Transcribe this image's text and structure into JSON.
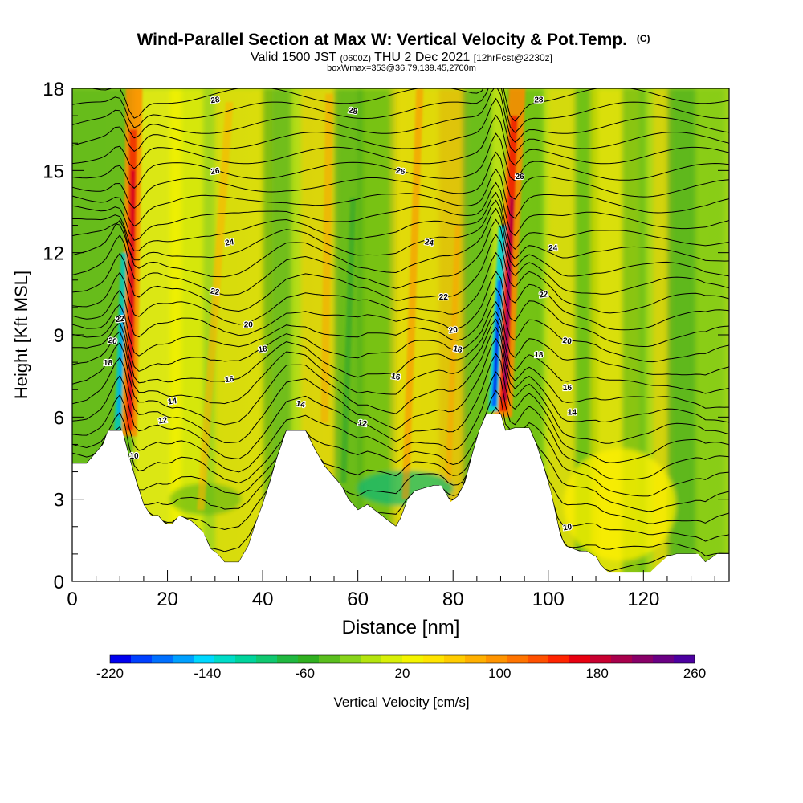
{
  "chart_data": {
    "type": "heatmap",
    "title": "Wind-Parallel Section at Max W: Vertical Velocity & Pot.Temp.",
    "title_suffix": "(C)",
    "subtitle_parts": {
      "a": "Valid 1500 JST",
      "b": "(0600Z)",
      "c": "THU 2 Dec 2021",
      "d": "[12hrFcst@2230z]"
    },
    "info_line": "boxWmax=353@36.79,139.45,2700m",
    "xlabel": "Distance [nm]",
    "ylabel": "Height [Kft MSL]",
    "xlim": [
      0,
      138
    ],
    "ylim": [
      0,
      18
    ],
    "xticks": [
      0,
      20,
      40,
      60,
      80,
      100,
      120
    ],
    "yticks": [
      0,
      3,
      6,
      9,
      12,
      15,
      18
    ],
    "xticks_labels": [
      "0",
      "20",
      "40",
      "60",
      "80",
      "100",
      "120"
    ],
    "yticks_labels": [
      "0",
      "3",
      "6",
      "9",
      "12",
      "15",
      "18"
    ],
    "grid": false,
    "colorbar": {
      "label": "Vertical Velocity [cm/s]",
      "min": -220,
      "max": 260,
      "step": 20,
      "tick_labels": [
        "-220",
        "-140",
        "-60",
        "20",
        "100",
        "180",
        "260"
      ],
      "colors": [
        "#0000ee",
        "#0040ff",
        "#0070ff",
        "#00a0ff",
        "#00d8ff",
        "#00dcc8",
        "#00d49c",
        "#10c870",
        "#20b840",
        "#30b020",
        "#5abe1e",
        "#88d41a",
        "#b4e40e",
        "#d8f008",
        "#f4f400",
        "#ffe400",
        "#ffcc00",
        "#ffb000",
        "#ff9400",
        "#ff7400",
        "#ff5000",
        "#ff2400",
        "#e80010",
        "#c80030",
        "#a8004c",
        "#880068",
        "#6a0084",
        "#4c00a0"
      ]
    },
    "contour_field": "Potential Temperature (C)",
    "contour_labels": [
      {
        "x": 30,
        "y": 17.6,
        "text": "28"
      },
      {
        "x": 59,
        "y": 17.2,
        "text": "28"
      },
      {
        "x": 98,
        "y": 17.6,
        "text": "28"
      },
      {
        "x": 30,
        "y": 15.0,
        "text": "26"
      },
      {
        "x": 69,
        "y": 15.0,
        "text": "26"
      },
      {
        "x": 94,
        "y": 14.8,
        "text": "26"
      },
      {
        "x": 33,
        "y": 12.4,
        "text": "24"
      },
      {
        "x": 75,
        "y": 12.4,
        "text": "24"
      },
      {
        "x": 101,
        "y": 12.2,
        "text": "24"
      },
      {
        "x": 10,
        "y": 9.6,
        "text": "22"
      },
      {
        "x": 30,
        "y": 10.6,
        "text": "22"
      },
      {
        "x": 78,
        "y": 10.4,
        "text": "22"
      },
      {
        "x": 99,
        "y": 10.5,
        "text": "22"
      },
      {
        "x": 8.5,
        "y": 8.8,
        "text": "20"
      },
      {
        "x": 37,
        "y": 9.4,
        "text": "20"
      },
      {
        "x": 80,
        "y": 9.2,
        "text": "20"
      },
      {
        "x": 104,
        "y": 8.8,
        "text": "20"
      },
      {
        "x": 7.5,
        "y": 8.0,
        "text": "18"
      },
      {
        "x": 40,
        "y": 8.5,
        "text": "18"
      },
      {
        "x": 81,
        "y": 8.5,
        "text": "18"
      },
      {
        "x": 98,
        "y": 8.3,
        "text": "18"
      },
      {
        "x": 33,
        "y": 7.4,
        "text": "16"
      },
      {
        "x": 68,
        "y": 7.5,
        "text": "16"
      },
      {
        "x": 104,
        "y": 7.1,
        "text": "16"
      },
      {
        "x": 21,
        "y": 6.6,
        "text": "14"
      },
      {
        "x": 48,
        "y": 6.5,
        "text": "14"
      },
      {
        "x": 105,
        "y": 6.2,
        "text": "14"
      },
      {
        "x": 19,
        "y": 5.9,
        "text": "12"
      },
      {
        "x": 61,
        "y": 5.8,
        "text": "12"
      },
      {
        "x": 13,
        "y": 4.6,
        "text": "10"
      },
      {
        "x": 104,
        "y": 2.0,
        "text": "10"
      }
    ],
    "terrain_top": [
      [
        0,
        4.3
      ],
      [
        3,
        4.3
      ],
      [
        5,
        4.7
      ],
      [
        6.5,
        5.0
      ],
      [
        7.5,
        5.5
      ],
      [
        10.5,
        5.5
      ],
      [
        12,
        4.5
      ],
      [
        13.5,
        3.6
      ],
      [
        15,
        2.8
      ],
      [
        16.5,
        2.4
      ],
      [
        18,
        2.4
      ],
      [
        19.5,
        2.1
      ],
      [
        21,
        2.1
      ],
      [
        22.5,
        2.4
      ],
      [
        25,
        2.2
      ],
      [
        27.5,
        1.8
      ],
      [
        29,
        1.2
      ],
      [
        30.5,
        1.0
      ],
      [
        32,
        0.7
      ],
      [
        35,
        0.7
      ],
      [
        37,
        1.3
      ],
      [
        38.5,
        2.1
      ],
      [
        40,
        2.8
      ],
      [
        41.5,
        3.6
      ],
      [
        43,
        4.5
      ],
      [
        45,
        5.5
      ],
      [
        49,
        5.5
      ],
      [
        51,
        4.8
      ],
      [
        53,
        4.2
      ],
      [
        55,
        3.8
      ],
      [
        56.5,
        3.5
      ],
      [
        58,
        3.0
      ],
      [
        60,
        2.6
      ],
      [
        62,
        2.8
      ],
      [
        63.5,
        2.6
      ],
      [
        65,
        2.4
      ],
      [
        66.5,
        2.2
      ],
      [
        68,
        2.0
      ],
      [
        69,
        2.3
      ],
      [
        70.5,
        3.0
      ],
      [
        72,
        3.3
      ],
      [
        74,
        3.4
      ],
      [
        76,
        3.5
      ],
      [
        77.5,
        3.5
      ],
      [
        78.5,
        3.2
      ],
      [
        79.5,
        2.9
      ],
      [
        81,
        3.1
      ],
      [
        82.5,
        3.6
      ],
      [
        84,
        4.6
      ],
      [
        85.5,
        5.5
      ],
      [
        87,
        6.1
      ],
      [
        90,
        6.1
      ],
      [
        91,
        5.5
      ],
      [
        93,
        5.6
      ],
      [
        96,
        5.6
      ],
      [
        97.5,
        5.0
      ],
      [
        99,
        4.2
      ],
      [
        100.5,
        3.3
      ],
      [
        101.5,
        2.5
      ],
      [
        102.5,
        1.7
      ],
      [
        103.5,
        1.3
      ],
      [
        105,
        1.2
      ],
      [
        106.5,
        1.1
      ],
      [
        108,
        1.1
      ],
      [
        110,
        0.9
      ],
      [
        111,
        0.6
      ],
      [
        112.5,
        0.35
      ],
      [
        115,
        0.35
      ],
      [
        117,
        0.35
      ],
      [
        119,
        0.35
      ],
      [
        121.5,
        0.35
      ],
      [
        123,
        0.6
      ],
      [
        125,
        0.9
      ],
      [
        127,
        1.0
      ],
      [
        130,
        1.0
      ],
      [
        131.5,
        1.0
      ],
      [
        133,
        0.7
      ],
      [
        135.5,
        1.0
      ],
      [
        138,
        1.0
      ]
    ]
  }
}
